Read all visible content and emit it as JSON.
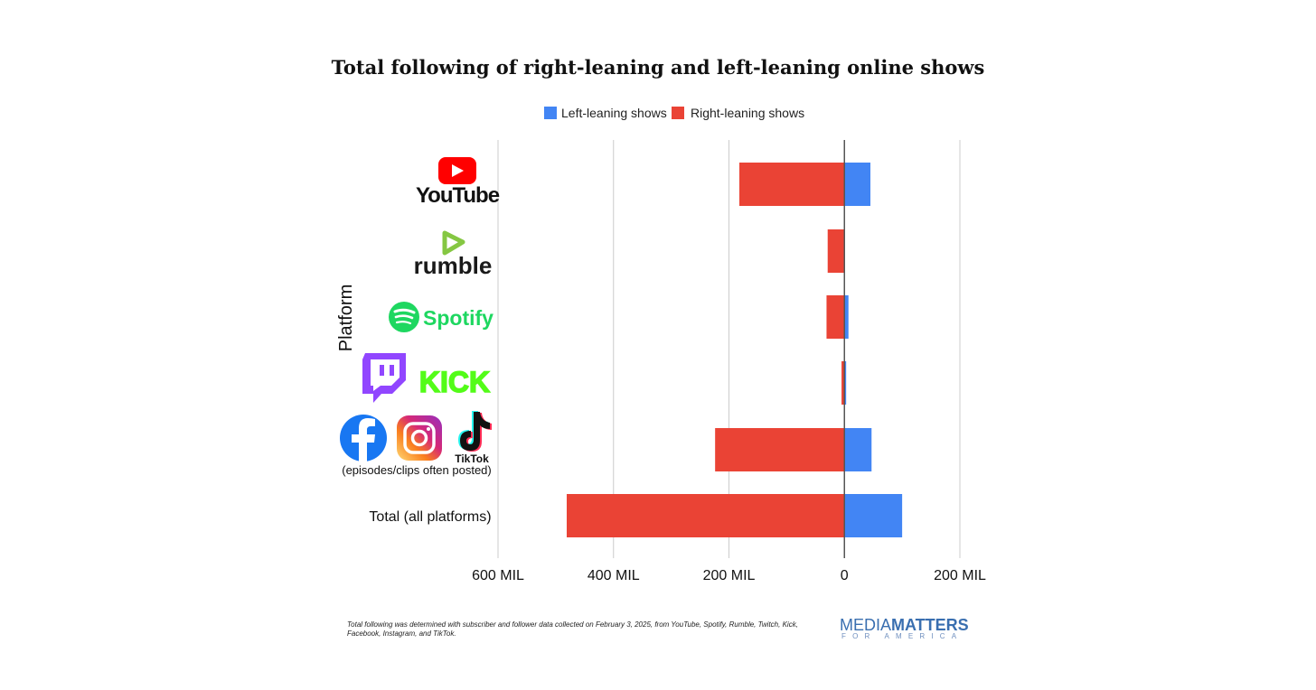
{
  "chart_data": {
    "type": "bar",
    "orientation": "horizontal-diverging",
    "title": "Total following of right-leaning and left-leaning online shows",
    "ylabel": "Platform",
    "xlim": [
      -600,
      200
    ],
    "xticks": [
      -600,
      -400,
      -200,
      0,
      200
    ],
    "xtick_labels": [
      "600 MIL",
      "400 MIL",
      "200 MIL",
      "0",
      "200 MIL"
    ],
    "legend_position": "top-center",
    "grid": true,
    "categories": [
      "YouTube",
      "rumble",
      "Spotify",
      "Twitch / KICK",
      "Facebook / Instagram / TikTok",
      "Total (all platforms)"
    ],
    "category_subtitle": "(episodes/clips often posted)",
    "series": [
      {
        "name": "Left-leaning shows",
        "color": "#4285f4",
        "values": [
          45,
          0,
          7,
          3,
          47,
          100
        ]
      },
      {
        "name": "Right-leaning shows",
        "color": "#ea4335",
        "values": [
          182,
          29,
          31,
          5,
          224,
          481
        ]
      }
    ]
  },
  "logos": {
    "youtube": "YouTube",
    "rumble": "rumble",
    "spotify": "Spotify",
    "kick": "KICK",
    "tiktok": "TikTok"
  },
  "footnote_lines": [
    "Total following was determined with subscriber and follower data collected on February 3, 2025, from YouTube, Spotify, Rumble, Twitch, Kick,",
    "Facebook, Instagram, and TikTok."
  ],
  "brand": {
    "media": "MEDIA",
    "matters": "MATTERS",
    "tagline": "FOR AMERICA"
  },
  "colors": {
    "left": "#4285f4",
    "right": "#ea4335",
    "brand_blue": "#3a6fb0",
    "youtube_red": "#ff0000",
    "rumble_green": "#85c742",
    "spotify_green": "#1ed760",
    "twitch_purple": "#9146ff",
    "kick_green": "#53fc18",
    "facebook_blue": "#1877f2"
  }
}
